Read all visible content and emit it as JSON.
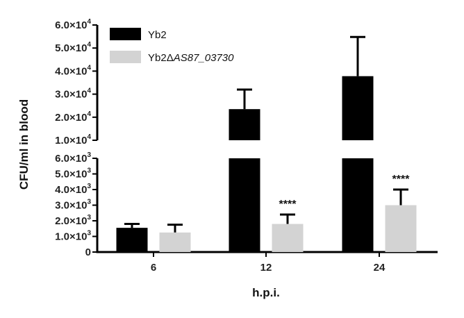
{
  "chart_data": {
    "type": "bar",
    "xlabel": "h.p.i.",
    "ylabel": "CFU/ml in blood",
    "categories": [
      "6",
      "12",
      "24"
    ],
    "y_axis_break": {
      "lower_segment": {
        "ylim": [
          0,
          6000
        ],
        "tick_labels": [
          "0",
          "1.0×10³",
          "2.0×10³",
          "3.0×10³",
          "4.0×10³",
          "5.0×10³",
          "6.0×10³"
        ],
        "tick_values": [
          0,
          1000,
          2000,
          3000,
          4000,
          5000,
          6000
        ]
      },
      "upper_segment": {
        "ylim": [
          10000,
          60000
        ],
        "tick_labels": [
          "1.0×10⁴",
          "2.0×10⁴",
          "3.0×10⁴",
          "4.0×10⁴",
          "5.0×10⁴",
          "6.0×10⁴"
        ],
        "tick_values": [
          10000,
          20000,
          30000,
          40000,
          50000,
          60000
        ]
      }
    },
    "series": [
      {
        "name": "Yb2",
        "name_main": "Yb2",
        "name_italic": "",
        "color": "#000000",
        "values": [
          1550,
          23500,
          37800
        ],
        "error": [
          250,
          8500,
          17000
        ]
      },
      {
        "name": "Yb2ΔAS87_03730",
        "name_main": "Yb2Δ",
        "name_italic": "AS87_03730",
        "color": "#d3d3d3",
        "values": [
          1250,
          1800,
          3000
        ],
        "error": [
          500,
          600,
          1000
        ]
      }
    ],
    "annotations": [
      {
        "category": "12",
        "series": "Yb2ΔAS87_03730",
        "text": "****"
      },
      {
        "category": "24",
        "series": "Yb2ΔAS87_03730",
        "text": "****"
      }
    ],
    "legend_position": "top-left",
    "grid": false
  }
}
